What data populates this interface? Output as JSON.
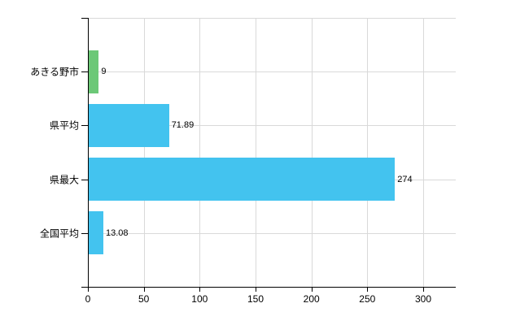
{
  "chart_data": {
    "type": "bar",
    "orientation": "horizontal",
    "categories": [
      "あきる野市",
      "県平均",
      "県最大",
      "全国平均"
    ],
    "values": [
      9,
      71.89,
      274,
      13.08
    ],
    "value_labels": [
      "9",
      "71.89",
      "274",
      "13.08"
    ],
    "bar_colors": [
      "#6cc877",
      "#43c3ef",
      "#43c3ef",
      "#43c3ef"
    ],
    "x_ticks": [
      0,
      50,
      100,
      150,
      200,
      250,
      300
    ],
    "x_tick_labels": [
      "0",
      "50",
      "100",
      "150",
      "200",
      "250",
      "300"
    ],
    "xlim": [
      0,
      329
    ],
    "grid": true,
    "legend": false,
    "grid_color": "#d9d9d9",
    "plot_border_top_color": "#d9d9d9",
    "axis_color": "#000000",
    "text_color": "#000000",
    "background_color": "#ffffff"
  }
}
